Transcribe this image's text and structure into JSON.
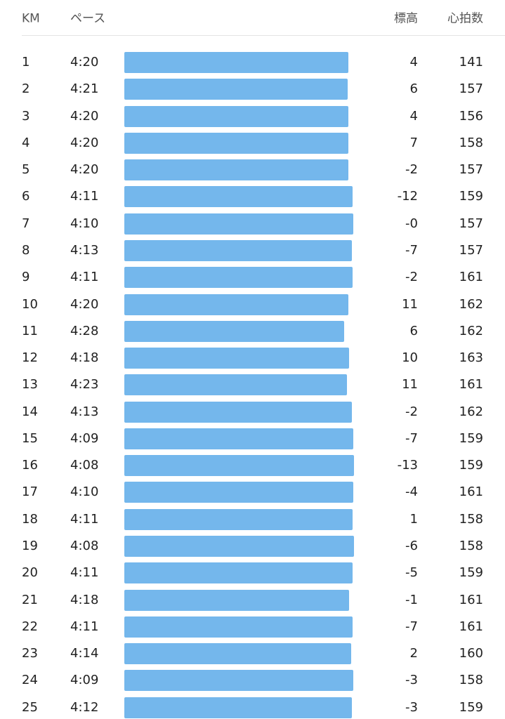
{
  "table": {
    "header": [
      "KM",
      "ペース",
      "標高",
      "心拍数"
    ],
    "rows": [
      [
        "1",
        "4:20",
        "4",
        "141"
      ],
      [
        "2",
        "4:21",
        "6",
        "157"
      ],
      [
        "3",
        "4:20",
        "4",
        "156"
      ],
      [
        "4",
        "4:20",
        "7",
        "158"
      ],
      [
        "5",
        "4:20",
        "-2",
        "157"
      ],
      [
        "6",
        "4:11",
        "-12",
        "159"
      ],
      [
        "7",
        "4:10",
        "-0",
        "157"
      ],
      [
        "8",
        "4:13",
        "-7",
        "157"
      ],
      [
        "9",
        "4:11",
        "-2",
        "161"
      ],
      [
        "10",
        "4:20",
        "11",
        "162"
      ],
      [
        "11",
        "4:28",
        "6",
        "162"
      ],
      [
        "12",
        "4:18",
        "10",
        "163"
      ],
      [
        "13",
        "4:23",
        "11",
        "161"
      ],
      [
        "14",
        "4:13",
        "-2",
        "162"
      ],
      [
        "15",
        "4:09",
        "-7",
        "159"
      ],
      [
        "16",
        "4:08",
        "-13",
        "159"
      ],
      [
        "17",
        "4:10",
        "-4",
        "161"
      ],
      [
        "18",
        "4:11",
        "1",
        "158"
      ],
      [
        "19",
        "4:08",
        "-6",
        "158"
      ],
      [
        "20",
        "4:11",
        "-5",
        "159"
      ],
      [
        "21",
        "4:18",
        "-1",
        "161"
      ],
      [
        "22",
        "4:11",
        "-7",
        "161"
      ],
      [
        "23",
        "4:14",
        "2",
        "160"
      ],
      [
        "24",
        "4:09",
        "-3",
        "158"
      ],
      [
        "25",
        "4:12",
        "-3",
        "159"
      ]
    ]
  }
}
